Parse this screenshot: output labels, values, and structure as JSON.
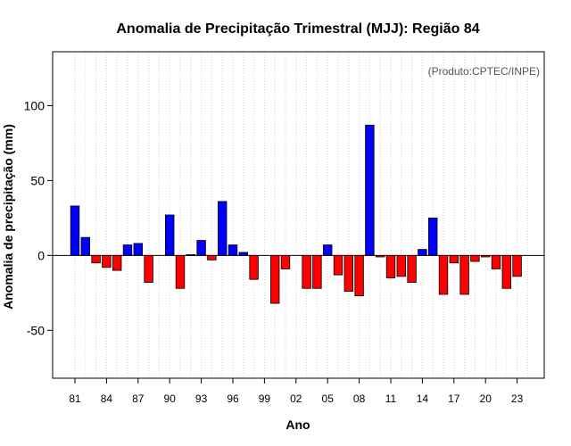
{
  "chart_data": {
    "type": "bar",
    "title": "Anomalia de Precipitação Trimestral (MJJ): Região 84",
    "xlabel": "Ano",
    "ylabel": "Anomalia de precipitação (mm)",
    "credit": "(Produto:CPTEC/INPE)",
    "ylim": [
      -82,
      136
    ],
    "yticks": [
      -50,
      0,
      50,
      100
    ],
    "ytick_labels": [
      "-50",
      "0",
      "50",
      "100"
    ],
    "categories": [
      "81",
      "82",
      "83",
      "84",
      "85",
      "86",
      "87",
      "88",
      "89",
      "90",
      "91",
      "92",
      "93",
      "94",
      "95",
      "96",
      "97",
      "98",
      "99",
      "00",
      "01",
      "02",
      "03",
      "04",
      "05",
      "06",
      "07",
      "08",
      "09",
      "10",
      "11",
      "12",
      "13",
      "14",
      "15",
      "16",
      "17",
      "18",
      "19",
      "20",
      "21",
      "22",
      "23",
      "24"
    ],
    "values": [
      33,
      12,
      -5,
      -8,
      -10,
      7,
      8,
      -18,
      0,
      27,
      -22,
      0.5,
      10,
      -3,
      36,
      7,
      2,
      -16,
      0,
      -32,
      -9,
      0,
      -22,
      -22,
      7,
      -13,
      -24,
      -27,
      87,
      -1,
      -15,
      -14,
      -18,
      4,
      25,
      -26,
      -5,
      -26,
      -4,
      -1,
      -9,
      -22,
      -14,
      0
    ],
    "xtick_labels": [
      "81",
      "84",
      "87",
      "90",
      "93",
      "96",
      "99",
      "02",
      "05",
      "08",
      "11",
      "14",
      "17",
      "20",
      "23"
    ],
    "colors": {
      "positive": "#0000ff",
      "negative": "#ff0000",
      "grid": "#d3d3d3",
      "zero_line": "#000000"
    },
    "grid": true
  }
}
